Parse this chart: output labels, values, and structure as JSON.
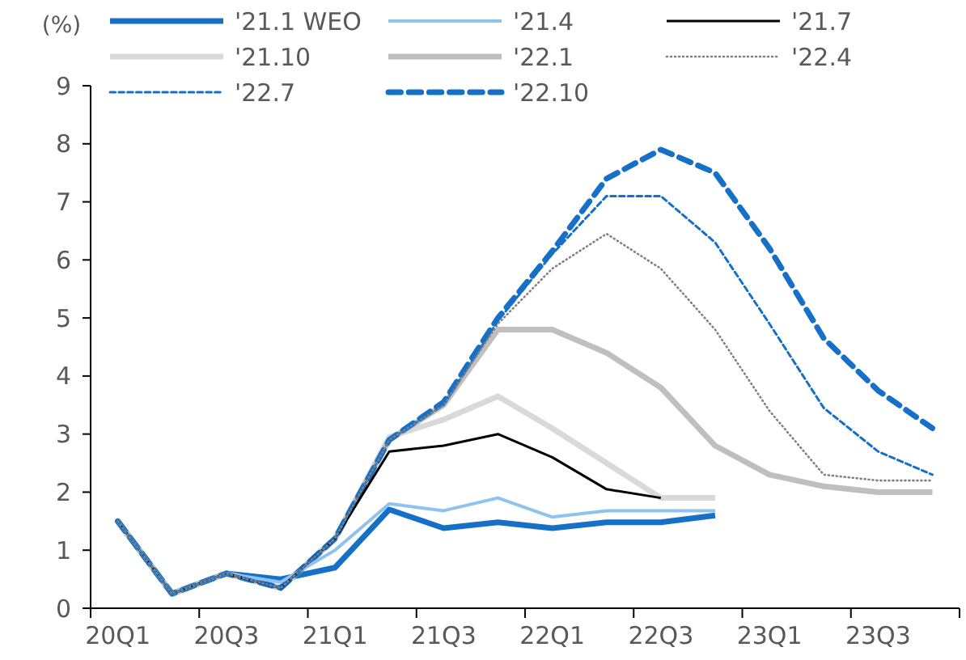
{
  "chart_data": {
    "type": "line",
    "ylabel": "(%)",
    "categories": [
      "20Q1",
      null,
      "20Q3",
      null,
      "21Q1",
      null,
      "21Q3",
      null,
      "22Q1",
      null,
      "22Q3",
      null,
      "23Q1",
      null,
      "23Q3",
      null
    ],
    "ylim": [
      0,
      9
    ],
    "yticks": [
      0,
      1,
      2,
      3,
      4,
      5,
      6,
      7,
      8,
      9
    ],
    "grid": false,
    "legend": "top",
    "series": [
      {
        "name": "'21.1 WEO",
        "color": "#1670c8",
        "line_style": "solid",
        "values": [
          1.5,
          0.25,
          0.6,
          0.5,
          0.7,
          1.7,
          1.38,
          1.48,
          1.38,
          1.48,
          1.48,
          1.6,
          null,
          null,
          null,
          null
        ]
      },
      {
        "name": "'21.4",
        "color": "#8ec3f0",
        "line_style": "solid",
        "values": [
          1.5,
          0.25,
          0.6,
          0.45,
          1.0,
          1.8,
          1.68,
          1.9,
          1.57,
          1.68,
          1.68,
          1.68,
          null,
          null,
          null,
          null
        ]
      },
      {
        "name": "'21.7",
        "color": "#000000",
        "line_style": "solid",
        "values": [
          1.5,
          0.25,
          0.6,
          0.35,
          1.2,
          2.7,
          2.8,
          3.0,
          2.6,
          2.05,
          1.9,
          null,
          null,
          null,
          null,
          null
        ]
      },
      {
        "name": "'21.10",
        "color": "#d9d9d9",
        "line_style": "solid",
        "values": [
          1.5,
          0.25,
          0.6,
          0.35,
          1.2,
          2.95,
          3.25,
          3.65,
          3.1,
          2.5,
          1.9,
          1.9,
          null,
          null,
          null,
          null
        ]
      },
      {
        "name": "'22.1",
        "color": "#bfbfbf",
        "line_style": "solid",
        "values": [
          1.5,
          0.25,
          0.6,
          0.35,
          1.2,
          2.9,
          3.5,
          4.8,
          4.8,
          4.4,
          3.8,
          2.8,
          2.3,
          2.1,
          2.0,
          2.0
        ]
      },
      {
        "name": "'22.4",
        "color": "#808080",
        "line_style": "dotted",
        "values": [
          1.5,
          0.25,
          0.6,
          0.35,
          1.2,
          2.9,
          3.5,
          4.9,
          5.85,
          6.45,
          5.85,
          4.8,
          3.4,
          2.3,
          2.2,
          2.2
        ]
      },
      {
        "name": "'22.7",
        "color": "#1670c8",
        "line_style": "dashed",
        "values": [
          1.5,
          0.25,
          0.6,
          0.35,
          1.2,
          2.9,
          3.5,
          4.95,
          6.1,
          7.1,
          7.1,
          6.3,
          4.9,
          3.45,
          2.7,
          2.3
        ]
      },
      {
        "name": "'22.10",
        "color": "#1670c8",
        "line_style": "dashed",
        "values": [
          1.5,
          0.25,
          0.6,
          0.35,
          1.2,
          2.9,
          3.55,
          5.0,
          6.15,
          7.4,
          7.9,
          7.5,
          6.2,
          4.65,
          3.75,
          3.1
        ]
      }
    ]
  }
}
